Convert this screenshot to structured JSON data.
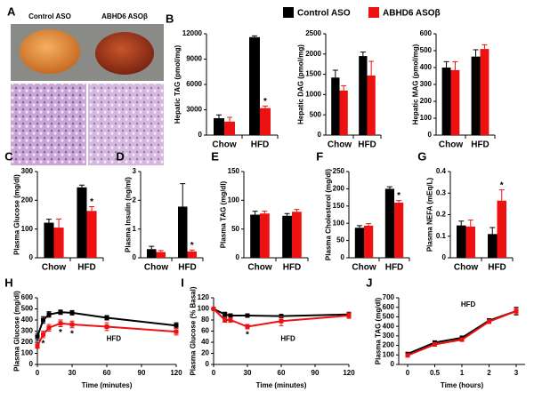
{
  "figure": {
    "panel_a": {
      "panel": "A",
      "labels": [
        "Control ASO",
        "ABHD6 ASOβ"
      ]
    }
  },
  "chart_data": [
    {
      "type": "bar",
      "panel": "B",
      "ylabel": "Hepatic TAG (pmol/mg)",
      "categories": [
        "Chow",
        "HFD"
      ],
      "ylim": [
        0,
        12000
      ],
      "yticks": [
        0,
        3000,
        6000,
        9000,
        12000
      ],
      "series": [
        {
          "name": "Control ASO",
          "color": "#000000",
          "values": [
            2000,
            11600
          ],
          "errors": [
            400,
            150
          ]
        },
        {
          "name": "ABHD6 ASOβ",
          "color": "#ee1111",
          "values": [
            1600,
            3200
          ],
          "errors": [
            500,
            250
          ]
        }
      ],
      "annotations": [
        {
          "text": "*",
          "series": 1,
          "index": 1
        }
      ]
    },
    {
      "type": "bar",
      "ylabel": "Hepatic DAG (pmol/mg)",
      "categories": [
        "Chow",
        "HFD"
      ],
      "ylim": [
        0,
        2500
      ],
      "yticks": [
        0,
        500,
        1000,
        1500,
        2000,
        2500
      ],
      "series": [
        {
          "name": "Control ASO",
          "color": "#000000",
          "values": [
            1420,
            1950
          ],
          "errors": [
            180,
            100
          ]
        },
        {
          "name": "ABHD6 ASOβ",
          "color": "#ee1111",
          "values": [
            1100,
            1470
          ],
          "errors": [
            120,
            350
          ]
        }
      ]
    },
    {
      "type": "bar",
      "ylabel": "Hepatic MAG (pmol/mg)",
      "categories": [
        "Chow",
        "HFD"
      ],
      "ylim": [
        0,
        600
      ],
      "yticks": [
        0,
        100,
        200,
        300,
        400,
        500,
        600
      ],
      "series": [
        {
          "name": "Control ASO",
          "color": "#000000",
          "values": [
            400,
            465
          ],
          "errors": [
            35,
            40
          ]
        },
        {
          "name": "ABHD6 ASOβ",
          "color": "#ee1111",
          "values": [
            385,
            510
          ],
          "errors": [
            50,
            25
          ]
        }
      ]
    },
    {
      "type": "bar",
      "panel": "C",
      "ylabel": "Plasma Glucose (mg/dl)",
      "categories": [
        "Chow",
        "HFD"
      ],
      "ylim": [
        0,
        300
      ],
      "yticks": [
        0,
        100,
        200,
        300
      ],
      "series": [
        {
          "name": "Control ASO",
          "color": "#000000",
          "values": [
            122,
            245
          ],
          "errors": [
            12,
            8
          ]
        },
        {
          "name": "ABHD6 ASOβ",
          "color": "#ee1111",
          "values": [
            105,
            163
          ],
          "errors": [
            30,
            15
          ]
        }
      ],
      "annotations": [
        {
          "text": "*",
          "series": 1,
          "index": 1
        }
      ]
    },
    {
      "type": "bar",
      "panel": "D",
      "ylabel": "Plasma Insulin (ng/ml)",
      "categories": [
        "Chow",
        "HFD"
      ],
      "ylim": [
        0,
        3
      ],
      "yticks": [
        0,
        1,
        2,
        3
      ],
      "series": [
        {
          "name": "Control ASO",
          "color": "#000000",
          "values": [
            0.3,
            1.78
          ],
          "errors": [
            0.1,
            0.8
          ]
        },
        {
          "name": "ABHD6 ASOβ",
          "color": "#ee1111",
          "values": [
            0.2,
            0.22
          ],
          "errors": [
            0.05,
            0.05
          ]
        }
      ],
      "annotations": [
        {
          "text": "*",
          "series": 1,
          "index": 1
        }
      ]
    },
    {
      "type": "bar",
      "panel": "E",
      "ylabel": "Plasma TAG (mg/dl)",
      "categories": [
        "Chow",
        "HFD"
      ],
      "ylim": [
        0,
        150
      ],
      "yticks": [
        0,
        50,
        100,
        150
      ],
      "series": [
        {
          "name": "Control ASO",
          "color": "#000000",
          "values": [
            75,
            73
          ],
          "errors": [
            6,
            4
          ]
        },
        {
          "name": "ABHD6 ASOβ",
          "color": "#ee1111",
          "values": [
            77,
            80
          ],
          "errors": [
            4,
            4
          ]
        }
      ]
    },
    {
      "type": "bar",
      "panel": "F",
      "ylabel": "Plasma Cholesterol (mg/dl)",
      "categories": [
        "Chow",
        "HFD"
      ],
      "ylim": [
        0,
        250
      ],
      "yticks": [
        0,
        50,
        100,
        150,
        200,
        250
      ],
      "series": [
        {
          "name": "Control ASO",
          "color": "#000000",
          "values": [
            87,
            200
          ],
          "errors": [
            6,
            6
          ]
        },
        {
          "name": "ABHD6 ASOβ",
          "color": "#ee1111",
          "values": [
            93,
            160
          ],
          "errors": [
            6,
            6
          ]
        }
      ],
      "annotations": [
        {
          "text": "*",
          "series": 1,
          "index": 1
        }
      ]
    },
    {
      "type": "bar",
      "panel": "G",
      "ylabel": "Plasma NEFA (mEq/L)",
      "categories": [
        "Chow",
        "HFD"
      ],
      "ylim": [
        0,
        0.4
      ],
      "yticks": [
        0,
        0.1,
        0.2,
        0.3,
        0.4
      ],
      "series": [
        {
          "name": "Control ASO",
          "color": "#000000",
          "values": [
            0.15,
            0.11
          ],
          "errors": [
            0.02,
            0.03
          ]
        },
        {
          "name": "ABHD6 ASOβ",
          "color": "#ee1111",
          "values": [
            0.145,
            0.265
          ],
          "errors": [
            0.03,
            0.05
          ]
        }
      ],
      "annotations": [
        {
          "text": "*",
          "series": 1,
          "index": 1
        }
      ]
    },
    {
      "type": "line",
      "panel": "H",
      "ylabel": "Plasma Glucose (mg/dl)",
      "xlabel": "Time (minutes)",
      "label": "HFD",
      "x": [
        0,
        5,
        10,
        20,
        30,
        60,
        120
      ],
      "xlim": [
        0,
        120
      ],
      "xticks": [
        0,
        30,
        60,
        90,
        120
      ],
      "ylim": [
        0,
        600
      ],
      "yticks": [
        0,
        100,
        200,
        300,
        400,
        500,
        600
      ],
      "series": [
        {
          "name": "Control ASO",
          "color": "#000000",
          "values": [
            250,
            400,
            450,
            470,
            465,
            420,
            350
          ],
          "errors": [
            30,
            30,
            25,
            20,
            20,
            20,
            25
          ]
        },
        {
          "name": "ABHD6 ASOβ",
          "color": "#ee1111",
          "values": [
            165,
            270,
            330,
            370,
            360,
            340,
            295
          ],
          "errors": [
            20,
            30,
            30,
            30,
            30,
            35,
            30
          ]
        }
      ],
      "annotations": [
        {
          "text": "*",
          "series": 1,
          "index": 1
        },
        {
          "text": "*",
          "series": 1,
          "index": 3
        },
        {
          "text": "*",
          "series": 1,
          "index": 4
        }
      ]
    },
    {
      "type": "line",
      "panel": "I",
      "ylabel": "Plasma Glucose (% Basal)",
      "xlabel": "Time (minutes)",
      "label": "HFD",
      "x": [
        0,
        10,
        15,
        30,
        60,
        120
      ],
      "xlim": [
        0,
        120
      ],
      "xticks": [
        0,
        30,
        60,
        90,
        120
      ],
      "ylim": [
        0,
        120
      ],
      "yticks": [
        0,
        20,
        40,
        60,
        80,
        100,
        120
      ],
      "series": [
        {
          "name": "Control ASO",
          "color": "#000000",
          "values": [
            100,
            90,
            88,
            88,
            87,
            90
          ],
          "errors": [
            3,
            4,
            3,
            3,
            3,
            4
          ]
        },
        {
          "name": "ABHD6 ASOβ",
          "color": "#ee1111",
          "values": [
            100,
            80,
            80,
            68,
            78,
            88
          ],
          "errors": [
            3,
            4,
            4,
            4,
            8,
            5
          ]
        }
      ],
      "annotations": [
        {
          "text": "*",
          "series": 1,
          "index": 3
        }
      ]
    },
    {
      "type": "line",
      "panel": "J",
      "ylabel": "Plasma TAG (mg/dl)",
      "xlabel": "Time (hours)",
      "label": "HFD",
      "categories": [
        "0",
        "0.5",
        "1",
        "2",
        "3"
      ],
      "ylim": [
        0,
        700
      ],
      "yticks": [
        0,
        100,
        200,
        300,
        400,
        500,
        600,
        700
      ],
      "series": [
        {
          "name": "Control ASO",
          "color": "#000000",
          "values": [
            110,
            230,
            280,
            460,
            560
          ],
          "errors": [
            10,
            15,
            15,
            20,
            40
          ]
        },
        {
          "name": "ABHD6 ASOβ",
          "color": "#ee1111",
          "values": [
            95,
            210,
            260,
            450,
            560
          ],
          "errors": [
            10,
            15,
            15,
            20,
            30
          ]
        }
      ]
    }
  ]
}
